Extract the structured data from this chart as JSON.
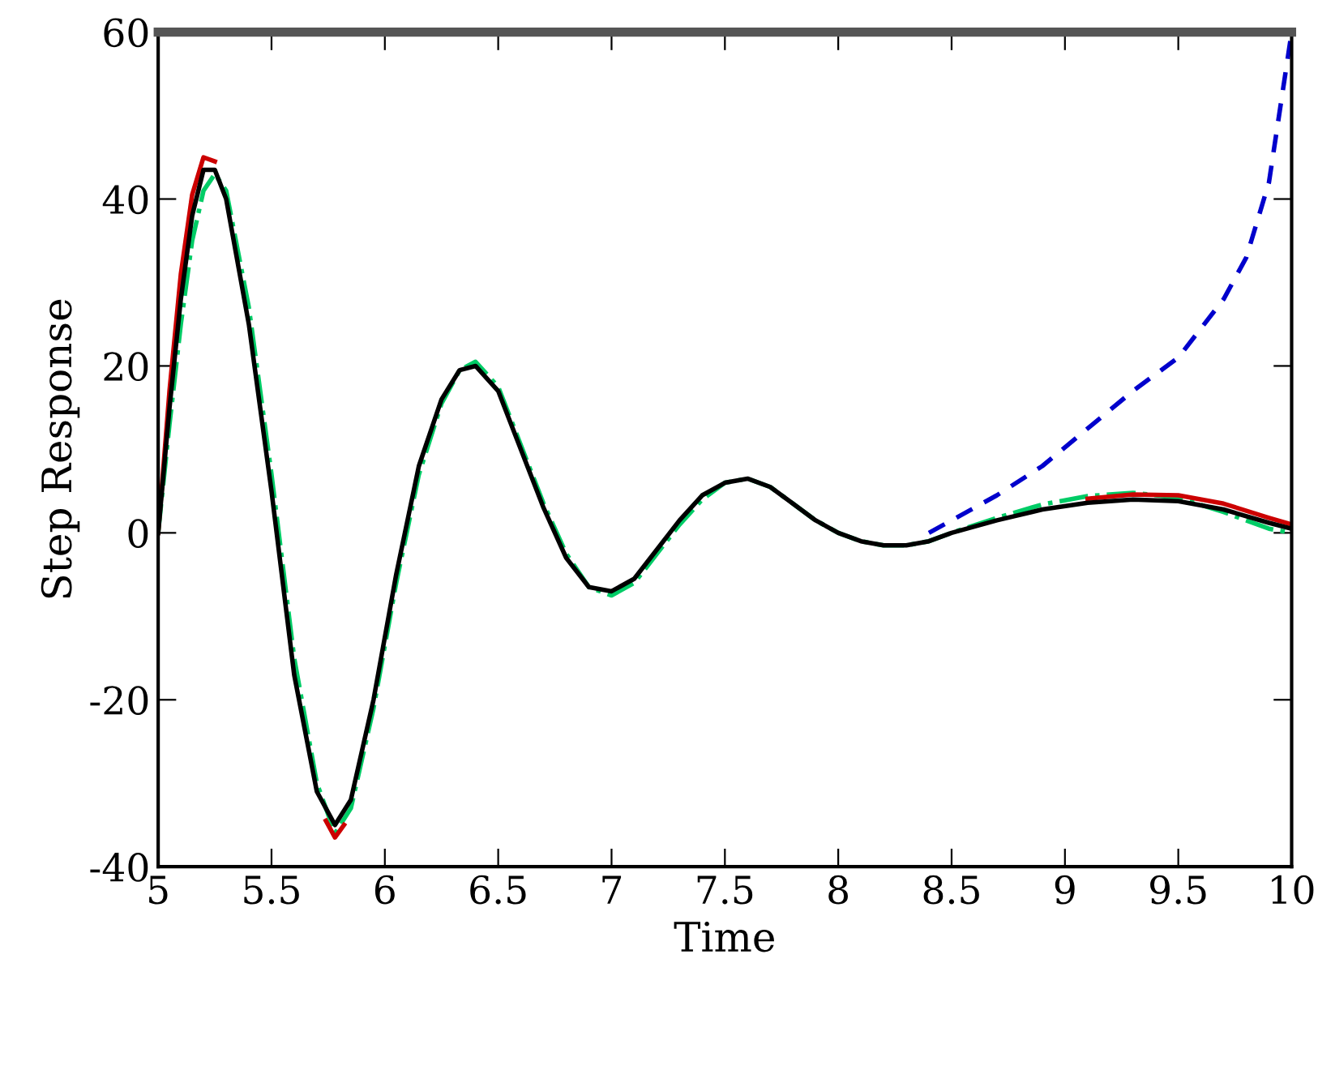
{
  "chart_data": {
    "type": "line",
    "xlabel": "Time",
    "ylabel": "Step Response",
    "xlim": [
      5,
      10
    ],
    "xticks": [
      5,
      5.5,
      6,
      6.5,
      7,
      7.5,
      8,
      8.5,
      9,
      9.5,
      10
    ],
    "ylim": [
      -40,
      60
    ],
    "yticks": [
      -40,
      -20,
      0,
      20,
      40,
      60
    ],
    "grid": false,
    "legend": false,
    "series": [
      {
        "color": "#0000cc",
        "line_style": "dashed",
        "x": [
          8.4,
          8.5,
          8.7,
          8.9,
          9.1,
          9.3,
          9.5,
          9.7,
          9.8,
          9.9,
          10.0
        ],
        "values": [
          0,
          1.5,
          4.5,
          8,
          12.5,
          17,
          21,
          28,
          33,
          42,
          60
        ]
      },
      {
        "color": "#00cc66",
        "line_style": "dashdot",
        "x": [
          5.0,
          5.05,
          5.1,
          5.15,
          5.2,
          5.25,
          5.3,
          5.4,
          5.5,
          5.6,
          5.7,
          5.78,
          5.85,
          5.95,
          6.05,
          6.15,
          6.25,
          6.33,
          6.4,
          6.5,
          6.6,
          6.7,
          6.8,
          6.9,
          7.0,
          7.1,
          7.2,
          7.3,
          7.4,
          7.5,
          7.6,
          7.7,
          7.8,
          7.9,
          8.0,
          8.1,
          8.2,
          8.3,
          8.4,
          8.5,
          8.7,
          8.9,
          9.1,
          9.3,
          9.5,
          9.7,
          9.9,
          10.0
        ],
        "values": [
          0,
          13,
          25,
          35,
          41,
          43,
          41,
          27,
          7,
          -15,
          -30,
          -36,
          -33,
          -21,
          -6,
          7,
          15.5,
          19.5,
          20.5,
          17.5,
          10.5,
          3.5,
          -2.5,
          -6.5,
          -7.5,
          -6,
          -2.5,
          1,
          4,
          6,
          6.5,
          5.5,
          3.5,
          1.5,
          0,
          -1,
          -1.5,
          -1.5,
          -1,
          0,
          1.8,
          3.4,
          4.4,
          4.8,
          4.2,
          2.5,
          0.5,
          0
        ]
      },
      {
        "color": "#cc0000",
        "line_style": "solid",
        "x": [
          5.0,
          5.05,
          5.1,
          5.15,
          5.2,
          5.25,
          5.7,
          5.74,
          5.78,
          5.82,
          5.85,
          8.9,
          9.1,
          9.3,
          9.5,
          9.7,
          9.9,
          10.0
        ],
        "values": [
          0,
          17,
          31,
          40.5,
          45,
          44.5,
          null,
          -34.5,
          -36.5,
          -35,
          null,
          null,
          4.1,
          4.6,
          4.5,
          3.5,
          1.8,
          1
        ]
      },
      {
        "color": "#000000",
        "line_style": "solid",
        "x": [
          5.0,
          5.05,
          5.1,
          5.15,
          5.2,
          5.25,
          5.3,
          5.4,
          5.5,
          5.6,
          5.7,
          5.78,
          5.85,
          5.95,
          6.05,
          6.15,
          6.25,
          6.33,
          6.4,
          6.5,
          6.6,
          6.7,
          6.8,
          6.9,
          7.0,
          7.1,
          7.2,
          7.3,
          7.4,
          7.5,
          7.6,
          7.7,
          7.8,
          7.9,
          8.0,
          8.1,
          8.2,
          8.3,
          8.4,
          8.5,
          8.7,
          8.9,
          9.1,
          9.3,
          9.5,
          9.7,
          9.9,
          10.0
        ],
        "values": [
          0,
          15,
          28,
          38,
          43.5,
          43.5,
          40,
          25,
          5,
          -17,
          -31,
          -35,
          -32,
          -20,
          -5,
          8,
          16,
          19.5,
          20,
          17,
          10,
          3,
          -3,
          -6.5,
          -7,
          -5.5,
          -2,
          1.5,
          4.5,
          6,
          6.5,
          5.5,
          3.5,
          1.5,
          0,
          -1,
          -1.5,
          -1.5,
          -1,
          0,
          1.5,
          2.8,
          3.6,
          4,
          3.8,
          2.8,
          1.2,
          0.5
        ]
      }
    ]
  }
}
